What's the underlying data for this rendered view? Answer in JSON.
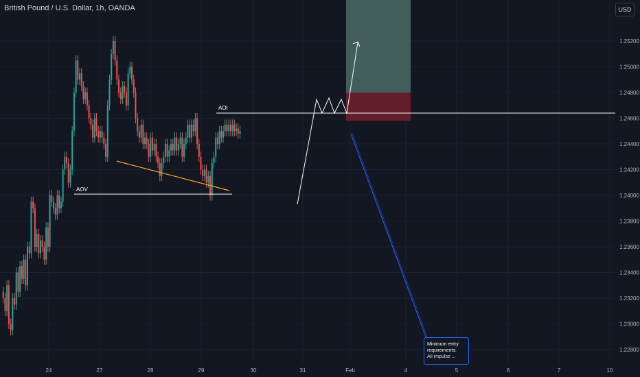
{
  "header": {
    "title": "British Pound / U.S. Dollar, 1h, OANDA",
    "currency_button": "USD"
  },
  "annotations": {
    "aoi": "AOI",
    "aov": "AOV"
  },
  "note": {
    "line1": "Minimum entry",
    "line2": "requirements:",
    "line3": "All impulse ..."
  },
  "colors": {
    "background": "#131722",
    "up": "#26a69a",
    "down": "#ef5350",
    "trendline": "#f5a623",
    "levels": "#ffffff",
    "projection": "#2962ff",
    "target_zone": "#4a6b64",
    "stop_zone": "#6d1f2d"
  },
  "chart_data": {
    "type": "candlestick",
    "title": "British Pound / U.S. Dollar, 1h, OANDA",
    "y_tick_labels": [
      "1.25200",
      "1.25000",
      "1.24800",
      "1.24600",
      "1.24400",
      "1.24200",
      "1.24000",
      "1.23800",
      "1.23600",
      "1.23400",
      "1.23200",
      "1.23000",
      "1.22800"
    ],
    "x_tick_labels": [
      "24",
      "27",
      "28",
      "29",
      "30",
      "31",
      "Feb",
      "4",
      "5",
      "6",
      "7",
      "10"
    ],
    "ylim": [
      1.227,
      1.254
    ],
    "levels": [
      {
        "label": "AOI",
        "price": 1.2464
      },
      {
        "label": "AOV",
        "price": 1.2401
      }
    ],
    "position_zone": {
      "entry": 1.246,
      "target": 1.256,
      "stop": 1.248
    },
    "price_path": [
      [
        0,
        1.2325
      ],
      [
        3,
        1.232
      ],
      [
        6,
        1.231
      ],
      [
        9,
        1.233
      ],
      [
        12,
        1.23
      ],
      [
        15,
        1.2295
      ],
      [
        18,
        1.232
      ],
      [
        21,
        1.2315
      ],
      [
        24,
        1.234
      ],
      [
        27,
        1.2325
      ],
      [
        30,
        1.2345
      ],
      [
        33,
        1.2335
      ],
      [
        36,
        1.235
      ],
      [
        39,
        1.233
      ],
      [
        42,
        1.236
      ],
      [
        45,
        1.2355
      ],
      [
        48,
        1.2395
      ],
      [
        51,
        1.239
      ],
      [
        54,
        1.236
      ],
      [
        57,
        1.237
      ],
      [
        60,
        1.2355
      ],
      [
        63,
        1.2365
      ],
      [
        66,
        1.236
      ],
      [
        69,
        1.235
      ],
      [
        72,
        1.2375
      ],
      [
        75,
        1.236
      ],
      [
        78,
        1.24
      ],
      [
        81,
        1.2395
      ],
      [
        84,
        1.239
      ],
      [
        87,
        1.2385
      ],
      [
        90,
        1.24
      ],
      [
        93,
        1.239
      ],
      [
        96,
        1.2395
      ],
      [
        99,
        1.242
      ],
      [
        102,
        1.243
      ],
      [
        105,
        1.2425
      ],
      [
        108,
        1.241
      ],
      [
        111,
        1.242
      ],
      [
        114,
        1.245
      ],
      [
        117,
        1.248
      ],
      [
        120,
        1.2505
      ],
      [
        123,
        1.249
      ],
      [
        126,
        1.2495
      ],
      [
        129,
        1.2485
      ],
      [
        132,
        1.2475
      ],
      [
        135,
        1.248
      ],
      [
        138,
        1.247
      ],
      [
        141,
        1.246
      ],
      [
        144,
        1.2455
      ],
      [
        147,
        1.2445
      ],
      [
        150,
        1.246
      ],
      [
        153,
        1.245
      ],
      [
        156,
        1.2445
      ],
      [
        159,
        1.245
      ],
      [
        162,
        1.2445
      ],
      [
        165,
        1.244
      ],
      [
        168,
        1.243
      ],
      [
        171,
        1.247
      ],
      [
        174,
        1.249
      ],
      [
        177,
        1.251
      ],
      [
        180,
        1.252
      ],
      [
        183,
        1.2505
      ],
      [
        186,
        1.249
      ],
      [
        189,
        1.248
      ],
      [
        192,
        1.2475
      ],
      [
        195,
        1.2485
      ],
      [
        198,
        1.248
      ],
      [
        201,
        1.247
      ],
      [
        204,
        1.2495
      ],
      [
        207,
        1.25
      ],
      [
        210,
        1.249
      ],
      [
        213,
        1.248
      ],
      [
        216,
        1.246
      ],
      [
        219,
        1.245
      ],
      [
        222,
        1.2445
      ],
      [
        225,
        1.2455
      ],
      [
        228,
        1.244
      ],
      [
        231,
        1.2445
      ],
      [
        234,
        1.244
      ],
      [
        237,
        1.243
      ],
      [
        240,
        1.2445
      ],
      [
        243,
        1.2435
      ],
      [
        246,
        1.244
      ],
      [
        249,
        1.243
      ],
      [
        252,
        1.2425
      ],
      [
        255,
        1.2415
      ],
      [
        258,
        1.2425
      ],
      [
        261,
        1.243
      ],
      [
        264,
        1.244
      ],
      [
        267,
        1.243
      ],
      [
        270,
        1.2435
      ],
      [
        273,
        1.244
      ],
      [
        276,
        1.2435
      ],
      [
        279,
        1.2445
      ],
      [
        282,
        1.2435
      ],
      [
        285,
        1.244
      ],
      [
        288,
        1.2445
      ],
      [
        291,
        1.243
      ],
      [
        294,
        1.244
      ],
      [
        297,
        1.2445
      ],
      [
        300,
        1.2455
      ],
      [
        303,
        1.2445
      ],
      [
        306,
        1.2455
      ],
      [
        309,
        1.245
      ],
      [
        312,
        1.246
      ],
      [
        315,
        1.244
      ],
      [
        318,
        1.243
      ],
      [
        321,
        1.242
      ],
      [
        324,
        1.2415
      ],
      [
        327,
        1.242
      ],
      [
        330,
        1.241
      ],
      [
        333,
        1.2415
      ],
      [
        336,
        1.24
      ],
      [
        339,
        1.2425
      ],
      [
        342,
        1.243
      ],
      [
        345,
        1.2445
      ],
      [
        348,
        1.244
      ],
      [
        351,
        1.245
      ],
      [
        354,
        1.2445
      ],
      [
        357,
        1.245
      ],
      [
        360,
        1.2455
      ],
      [
        363,
        1.245
      ],
      [
        366,
        1.2455
      ],
      [
        369,
        1.245
      ],
      [
        372,
        1.2455
      ],
      [
        375,
        1.245
      ],
      [
        378,
        1.2452
      ],
      [
        381,
        1.2448
      ],
      [
        384,
        1.245
      ]
    ]
  }
}
